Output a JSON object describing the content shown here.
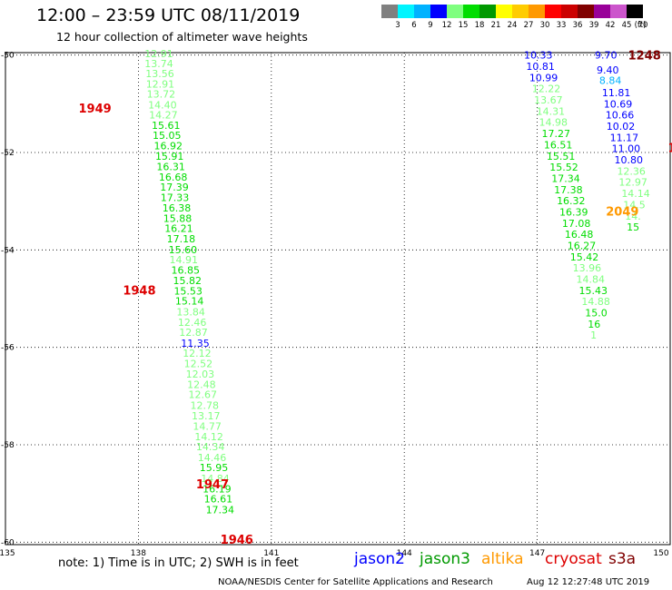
{
  "title": "12:00 – 23:59 UTC 08/11/2019",
  "subtitle": "12 hour collection of altimeter wave heights",
  "color_scale": {
    "unit": "(ft)",
    "swatches": [
      {
        "label": "3",
        "color": "#808080"
      },
      {
        "label": "6",
        "color": "#00f5ff"
      },
      {
        "label": "9",
        "color": "#00b2ff"
      },
      {
        "label": "12",
        "color": "#0000ff"
      },
      {
        "label": "15",
        "color": "#7fff7f"
      },
      {
        "label": "18",
        "color": "#00dd00"
      },
      {
        "label": "21",
        "color": "#009900"
      },
      {
        "label": "24",
        "color": "#ffff00"
      },
      {
        "label": "27",
        "color": "#ffcc00"
      },
      {
        "label": "30",
        "color": "#ff9900"
      },
      {
        "label": "33",
        "color": "#ff0000"
      },
      {
        "label": "36",
        "color": "#cc0000"
      },
      {
        "label": "39",
        "color": "#800000"
      },
      {
        "label": "42",
        "color": "#990099"
      },
      {
        "label": "45",
        "color": "#cc55cc"
      },
      {
        "label": "70",
        "color": "#000000"
      }
    ]
  },
  "map": {
    "lon_range": [
      135,
      150
    ],
    "lat_range": [
      -60.05,
      -49.95
    ],
    "lon_ticks": [
      {
        "v": 135,
        "label": "135"
      },
      {
        "v": 138,
        "label": "138"
      },
      {
        "v": 141,
        "label": "141"
      },
      {
        "v": 144,
        "label": "144"
      },
      {
        "v": 147,
        "label": "147"
      },
      {
        "v": 150,
        "label": "150"
      }
    ],
    "lat_ticks": [
      {
        "v": -50,
        "label": "-50"
      },
      {
        "v": -52,
        "label": "-52"
      },
      {
        "v": -54,
        "label": "-54"
      },
      {
        "v": -56,
        "label": "-56"
      },
      {
        "v": -58,
        "label": "-58"
      },
      {
        "v": -60,
        "label": "-60"
      }
    ],
    "grid": true
  },
  "tracks": [
    {
      "labels": [
        {
          "text": "1949",
          "lon": 136.65,
          "lat": -51.09,
          "color": "#dd0000"
        },
        {
          "text": "1948",
          "lon": 137.65,
          "lat": -54.82,
          "color": "#dd0000"
        },
        {
          "text": "1947",
          "lon": 139.3,
          "lat": -58.8,
          "color": "#dd0000"
        },
        {
          "text": "1946",
          "lon": 139.85,
          "lat": -59.94,
          "color": "#dd0000"
        }
      ],
      "points": [
        {
          "v": "12.91",
          "lon": 138.14,
          "lat": -49.97,
          "color": "#7fff7f"
        },
        {
          "v": "13.74",
          "lon": 138.14,
          "lat": -50.17,
          "color": "#7fff7f"
        },
        {
          "v": "13.56",
          "lon": 138.16,
          "lat": -50.38,
          "color": "#7fff7f"
        },
        {
          "v": "12.91",
          "lon": 138.17,
          "lat": -50.59,
          "color": "#7fff7f"
        },
        {
          "v": "13.72",
          "lon": 138.19,
          "lat": -50.8,
          "color": "#7fff7f"
        },
        {
          "v": "14.40",
          "lon": 138.22,
          "lat": -51.02,
          "color": "#7fff7f"
        },
        {
          "v": "14.27",
          "lon": 138.24,
          "lat": -51.23,
          "color": "#7fff7f"
        },
        {
          "v": "15.61",
          "lon": 138.3,
          "lat": -51.44,
          "color": "#00dd00"
        },
        {
          "v": "15.05",
          "lon": 138.32,
          "lat": -51.65,
          "color": "#00dd00"
        },
        {
          "v": "16.92",
          "lon": 138.35,
          "lat": -51.86,
          "color": "#00dd00"
        },
        {
          "v": "15.91",
          "lon": 138.38,
          "lat": -52.07,
          "color": "#00dd00"
        },
        {
          "v": "16.31",
          "lon": 138.41,
          "lat": -52.29,
          "color": "#00dd00"
        },
        {
          "v": "16.68",
          "lon": 138.46,
          "lat": -52.5,
          "color": "#00dd00"
        },
        {
          "v": "17.39",
          "lon": 138.49,
          "lat": -52.71,
          "color": "#00dd00"
        },
        {
          "v": "17.33",
          "lon": 138.5,
          "lat": -52.92,
          "color": "#00dd00"
        },
        {
          "v": "16.38",
          "lon": 138.54,
          "lat": -53.14,
          "color": "#00dd00"
        },
        {
          "v": "15.88",
          "lon": 138.56,
          "lat": -53.35,
          "color": "#00dd00"
        },
        {
          "v": "16.21",
          "lon": 138.59,
          "lat": -53.56,
          "color": "#00dd00"
        },
        {
          "v": "17.18",
          "lon": 138.64,
          "lat": -53.77,
          "color": "#00dd00"
        },
        {
          "v": "15.60",
          "lon": 138.68,
          "lat": -53.99,
          "color": "#00dd00"
        },
        {
          "v": "14.91",
          "lon": 138.7,
          "lat": -54.2,
          "color": "#7fff7f"
        },
        {
          "v": "16.85",
          "lon": 138.74,
          "lat": -54.41,
          "color": "#00dd00"
        },
        {
          "v": "15.82",
          "lon": 138.78,
          "lat": -54.63,
          "color": "#00dd00"
        },
        {
          "v": "15.53",
          "lon": 138.8,
          "lat": -54.84,
          "color": "#00dd00"
        },
        {
          "v": "15.14",
          "lon": 138.83,
          "lat": -55.05,
          "color": "#00dd00"
        },
        {
          "v": "13.84",
          "lon": 138.86,
          "lat": -55.27,
          "color": "#7fff7f"
        },
        {
          "v": "12.46",
          "lon": 138.89,
          "lat": -55.48,
          "color": "#7fff7f"
        },
        {
          "v": "12.87",
          "lon": 138.92,
          "lat": -55.69,
          "color": "#7fff7f"
        },
        {
          "v": "11.35",
          "lon": 138.96,
          "lat": -55.91,
          "color": "#0000ff"
        },
        {
          "v": "12.12",
          "lon": 139.0,
          "lat": -56.12,
          "color": "#7fff7f"
        },
        {
          "v": "12.52",
          "lon": 139.03,
          "lat": -56.33,
          "color": "#7fff7f"
        },
        {
          "v": "12.03",
          "lon": 139.07,
          "lat": -56.55,
          "color": "#7fff7f"
        },
        {
          "v": "12.48",
          "lon": 139.1,
          "lat": -56.76,
          "color": "#7fff7f"
        },
        {
          "v": "12.67",
          "lon": 139.13,
          "lat": -56.97,
          "color": "#7fff7f"
        },
        {
          "v": "12.78",
          "lon": 139.17,
          "lat": -57.19,
          "color": "#7fff7f"
        },
        {
          "v": "13.17",
          "lon": 139.2,
          "lat": -57.4,
          "color": "#7fff7f"
        },
        {
          "v": "14.77",
          "lon": 139.23,
          "lat": -57.62,
          "color": "#7fff7f"
        },
        {
          "v": "14.12",
          "lon": 139.27,
          "lat": -57.83,
          "color": "#7fff7f"
        },
        {
          "v": "14.34",
          "lon": 139.3,
          "lat": -58.04,
          "color": "#7fff7f"
        },
        {
          "v": "14.46",
          "lon": 139.34,
          "lat": -58.26,
          "color": "#7fff7f"
        },
        {
          "v": "15.95",
          "lon": 139.38,
          "lat": -58.47,
          "color": "#00dd00"
        },
        {
          "v": "14.84",
          "lon": 139.41,
          "lat": -58.69,
          "color": "#7fff7f"
        },
        {
          "v": "16.19",
          "lon": 139.45,
          "lat": -58.9,
          "color": "#00dd00"
        },
        {
          "v": "16.61",
          "lon": 139.48,
          "lat": -59.11,
          "color": "#00dd00"
        },
        {
          "v": "17.34",
          "lon": 139.52,
          "lat": -59.33,
          "color": "#00dd00"
        }
      ]
    },
    {
      "labels": [
        {
          "text": "1248",
          "lon": 149.05,
          "lat": -50.0,
          "color": "#800000"
        },
        {
          "text": "2049",
          "lon": 148.55,
          "lat": -53.2,
          "color": "#ff9900"
        },
        {
          "text": "1",
          "lon": 149.95,
          "lat": -51.9,
          "color": "#dd0000"
        }
      ],
      "points": [
        {
          "v": "9.70",
          "lon": 148.3,
          "lat": -50.0,
          "color": "#0000ff"
        },
        {
          "v": "9.40",
          "lon": 148.34,
          "lat": -50.3,
          "color": "#0000ff"
        },
        {
          "v": "8.84",
          "lon": 148.4,
          "lat": -50.52,
          "color": "#00b2ff"
        },
        {
          "v": "11.81",
          "lon": 148.46,
          "lat": -50.77,
          "color": "#0000ff"
        },
        {
          "v": "10.69",
          "lon": 148.5,
          "lat": -51.0,
          "color": "#0000ff"
        },
        {
          "v": "10.66",
          "lon": 148.54,
          "lat": -51.23,
          "color": "#0000ff"
        },
        {
          "v": "10.02",
          "lon": 148.56,
          "lat": -51.46,
          "color": "#0000ff"
        },
        {
          "v": "11.17",
          "lon": 148.64,
          "lat": -51.69,
          "color": "#0000ff"
        },
        {
          "v": "11.00",
          "lon": 148.68,
          "lat": -51.92,
          "color": "#0000ff"
        },
        {
          "v": "10.80",
          "lon": 148.74,
          "lat": -52.15,
          "color": "#0000ff"
        },
        {
          "v": "12.36",
          "lon": 148.8,
          "lat": -52.38,
          "color": "#7fff7f"
        },
        {
          "v": "12.97",
          "lon": 148.84,
          "lat": -52.61,
          "color": "#7fff7f"
        },
        {
          "v": "14.14",
          "lon": 148.9,
          "lat": -52.84,
          "color": "#7fff7f"
        },
        {
          "v": "14.5",
          "lon": 148.94,
          "lat": -53.07,
          "color": "#7fff7f"
        },
        {
          "v": "14.",
          "lon": 148.98,
          "lat": -53.3,
          "color": "#7fff7f"
        },
        {
          "v": "15",
          "lon": 149.02,
          "lat": -53.53,
          "color": "#00dd00"
        }
      ]
    },
    {
      "labels": [],
      "points": [
        {
          "v": "10.33",
          "lon": 146.7,
          "lat": -50.0,
          "color": "#0000ff"
        },
        {
          "v": "10.81",
          "lon": 146.75,
          "lat": -50.23,
          "color": "#0000ff"
        },
        {
          "v": "10.99",
          "lon": 146.82,
          "lat": -50.46,
          "color": "#0000ff"
        },
        {
          "v": "12.22",
          "lon": 146.88,
          "lat": -50.69,
          "color": "#7fff7f"
        },
        {
          "v": "13.67",
          "lon": 146.93,
          "lat": -50.92,
          "color": "#7fff7f"
        },
        {
          "v": "14.31",
          "lon": 146.98,
          "lat": -51.15,
          "color": "#7fff7f"
        },
        {
          "v": "14.98",
          "lon": 147.04,
          "lat": -51.38,
          "color": "#7fff7f"
        },
        {
          "v": "17.27",
          "lon": 147.1,
          "lat": -51.61,
          "color": "#00dd00"
        },
        {
          "v": "16.51",
          "lon": 147.15,
          "lat": -51.84,
          "color": "#00dd00"
        },
        {
          "v": "15.51",
          "lon": 147.21,
          "lat": -52.07,
          "color": "#00dd00"
        },
        {
          "v": "15.52",
          "lon": 147.28,
          "lat": -52.3,
          "color": "#00dd00"
        },
        {
          "v": "17.34",
          "lon": 147.32,
          "lat": -52.53,
          "color": "#00dd00"
        },
        {
          "v": "17.38",
          "lon": 147.38,
          "lat": -52.76,
          "color": "#00dd00"
        },
        {
          "v": "16.32",
          "lon": 147.44,
          "lat": -52.99,
          "color": "#00dd00"
        },
        {
          "v": "16.39",
          "lon": 147.5,
          "lat": -53.22,
          "color": "#00dd00"
        },
        {
          "v": "17.08",
          "lon": 147.56,
          "lat": -53.45,
          "color": "#00dd00"
        },
        {
          "v": "16.48",
          "lon": 147.62,
          "lat": -53.68,
          "color": "#00dd00"
        },
        {
          "v": "16.27",
          "lon": 147.68,
          "lat": -53.91,
          "color": "#00dd00"
        },
        {
          "v": "15.42",
          "lon": 147.74,
          "lat": -54.14,
          "color": "#00dd00"
        },
        {
          "v": "13.96",
          "lon": 147.8,
          "lat": -54.37,
          "color": "#7fff7f"
        },
        {
          "v": "14.84",
          "lon": 147.88,
          "lat": -54.6,
          "color": "#7fff7f"
        },
        {
          "v": "15.43",
          "lon": 147.94,
          "lat": -54.83,
          "color": "#00dd00"
        },
        {
          "v": "14.88",
          "lon": 148.0,
          "lat": -55.06,
          "color": "#7fff7f"
        },
        {
          "v": "15.0",
          "lon": 148.08,
          "lat": -55.29,
          "color": "#00dd00"
        },
        {
          "v": "16",
          "lon": 148.14,
          "lat": -55.52,
          "color": "#00dd00"
        },
        {
          "v": "1",
          "lon": 148.2,
          "lat": -55.75,
          "color": "#7fff7f"
        }
      ]
    }
  ],
  "note": "note:  1) Time is in UTC;  2) SWH is in feet",
  "satellites": [
    {
      "name": "jason2",
      "color": "#0000ff"
    },
    {
      "name": "jason3",
      "color": "#009900"
    },
    {
      "name": "altika",
      "color": "#ff9900"
    },
    {
      "name": "cryosat",
      "color": "#dd0000"
    },
    {
      "name": "s3a",
      "color": "#800000"
    }
  ],
  "credit": "NOAA/NESDIS Center for Satellite Applications and Research",
  "timestamp": "Aug 12 12:27:48 UTC 2019"
}
